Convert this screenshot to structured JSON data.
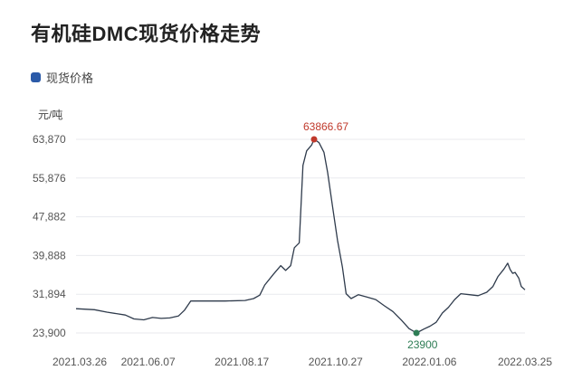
{
  "chart_data": {
    "type": "line",
    "title": "有机硅DMC现货价格走势",
    "ylabel": "元/吨",
    "xlabel": "",
    "legend": {
      "entries": [
        "现货价格"
      ],
      "placement": "top-left"
    },
    "colors": {
      "line": "#2f3b4c",
      "legend": "#2b5aa8",
      "max": "#c0392b",
      "min": "#2e7d55"
    },
    "grid": {
      "x": false,
      "y": true
    },
    "ylim": [
      23900,
      63870
    ],
    "y_ticks": [
      23900,
      31894,
      39888,
      47882,
      55876,
      63870
    ],
    "y_tick_labels": [
      "23,900",
      "31,894",
      "39,888",
      "47,882",
      "55,876",
      "63,870"
    ],
    "x_ticks": [
      "2021.03.26",
      "2021.06.07",
      "2021.08.17",
      "2021.10.27",
      "2022.01.06",
      "2022.03.25"
    ],
    "x_range": [
      "2021-03-26",
      "2022-03-25"
    ],
    "annotations": {
      "max": {
        "label": "63866.67",
        "x": "2021-10-05",
        "y": 63866.67
      },
      "min": {
        "label": "23900",
        "x": "2021-12-27",
        "y": 23900
      }
    },
    "series": [
      {
        "name": "现货价格",
        "points": [
          [
            "2021-03-26",
            28900
          ],
          [
            "2021-04-10",
            28700
          ],
          [
            "2021-04-20",
            28200
          ],
          [
            "2021-05-05",
            27600
          ],
          [
            "2021-05-12",
            26800
          ],
          [
            "2021-05-20",
            26600
          ],
          [
            "2021-05-27",
            27100
          ],
          [
            "2021-06-03",
            26900
          ],
          [
            "2021-06-10",
            27000
          ],
          [
            "2021-06-17",
            27400
          ],
          [
            "2021-06-22",
            28600
          ],
          [
            "2021-06-27",
            30500
          ],
          [
            "2021-07-10",
            30500
          ],
          [
            "2021-07-25",
            30500
          ],
          [
            "2021-08-10",
            30600
          ],
          [
            "2021-08-17",
            31000
          ],
          [
            "2021-08-22",
            31700
          ],
          [
            "2021-08-26",
            33800
          ],
          [
            "2021-09-02",
            36000
          ],
          [
            "2021-09-08",
            37800
          ],
          [
            "2021-09-12",
            36800
          ],
          [
            "2021-09-16",
            37800
          ],
          [
            "2021-09-19",
            41500
          ],
          [
            "2021-09-23",
            42500
          ],
          [
            "2021-09-26",
            58500
          ],
          [
            "2021-09-29",
            61500
          ],
          [
            "2021-10-03",
            62700
          ],
          [
            "2021-10-05",
            63866.67
          ],
          [
            "2021-10-09",
            63200
          ],
          [
            "2021-10-13",
            61200
          ],
          [
            "2021-10-16",
            57000
          ],
          [
            "2021-10-20",
            50000
          ],
          [
            "2021-10-24",
            43000
          ],
          [
            "2021-10-28",
            37500
          ],
          [
            "2021-10-31",
            32000
          ],
          [
            "2021-11-04",
            31000
          ],
          [
            "2021-11-10",
            31800
          ],
          [
            "2021-11-17",
            31300
          ],
          [
            "2021-11-24",
            30800
          ],
          [
            "2021-12-01",
            29500
          ],
          [
            "2021-12-08",
            28300
          ],
          [
            "2021-12-15",
            26500
          ],
          [
            "2021-12-21",
            24800
          ],
          [
            "2021-12-27",
            23900
          ],
          [
            "2022-01-02",
            24700
          ],
          [
            "2022-01-07",
            25300
          ],
          [
            "2022-01-12",
            26100
          ],
          [
            "2022-01-17",
            28000
          ],
          [
            "2022-01-22",
            29200
          ],
          [
            "2022-01-27",
            30800
          ],
          [
            "2022-02-01",
            32000
          ],
          [
            "2022-02-08",
            31800
          ],
          [
            "2022-02-15",
            31600
          ],
          [
            "2022-02-22",
            32300
          ],
          [
            "2022-02-27",
            33500
          ],
          [
            "2022-03-03",
            35500
          ],
          [
            "2022-03-08",
            37100
          ],
          [
            "2022-03-11",
            38300
          ],
          [
            "2022-03-13",
            37000
          ],
          [
            "2022-03-15",
            36200
          ],
          [
            "2022-03-17",
            36400
          ],
          [
            "2022-03-20",
            35200
          ],
          [
            "2022-03-22",
            33500
          ],
          [
            "2022-03-25",
            32800
          ]
        ]
      }
    ]
  }
}
